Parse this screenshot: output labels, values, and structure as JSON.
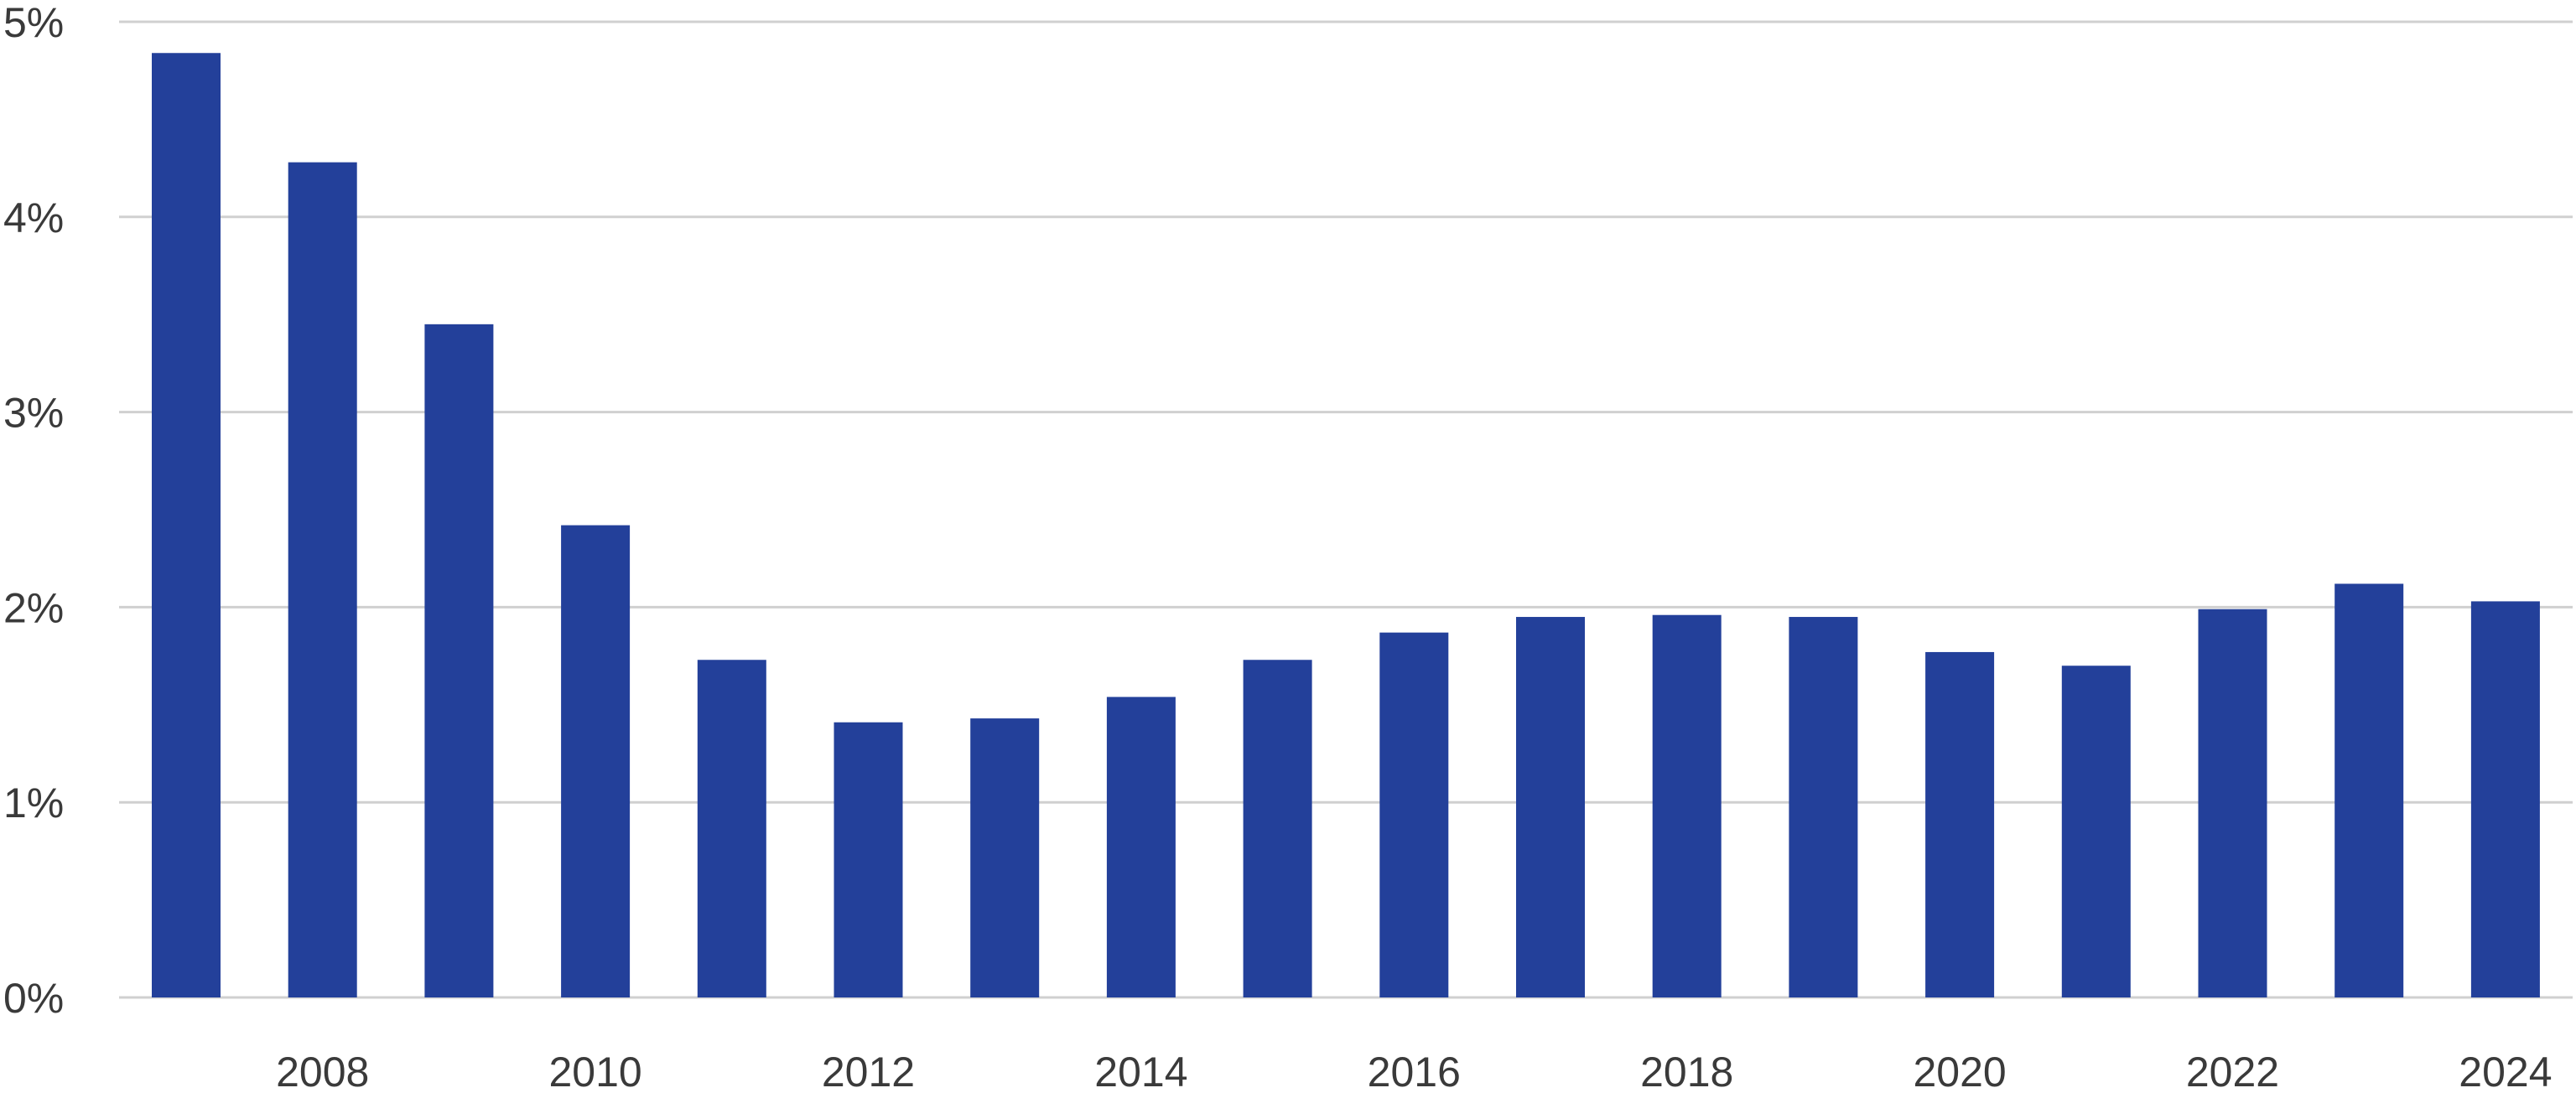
{
  "chart_data": {
    "type": "bar",
    "categories": [
      "2007",
      "2008",
      "2009",
      "2010",
      "2011",
      "2012",
      "2013",
      "2014",
      "2015",
      "2016",
      "2017",
      "2018",
      "2019",
      "2020",
      "2021",
      "2022",
      "2023",
      "2024"
    ],
    "values": [
      4.84,
      4.28,
      3.45,
      2.42,
      1.73,
      1.41,
      1.43,
      1.54,
      1.73,
      1.87,
      1.95,
      1.96,
      1.95,
      1.77,
      1.7,
      1.99,
      2.12,
      2.03
    ],
    "x_tick_labels": [
      "2008",
      "2010",
      "2012",
      "2014",
      "2016",
      "2018",
      "2020",
      "2022",
      "2024"
    ],
    "y_tick_labels": [
      "0%",
      "1%",
      "2%",
      "3%",
      "4%",
      "5%"
    ],
    "ylim": [
      0,
      5
    ],
    "yticks": [
      0,
      1,
      2,
      3,
      4,
      5
    ],
    "title": "",
    "xlabel": "",
    "ylabel": "",
    "grid": true,
    "legend": "none",
    "bar_color": "#23409a",
    "grid_color": "#d0d0d0"
  }
}
